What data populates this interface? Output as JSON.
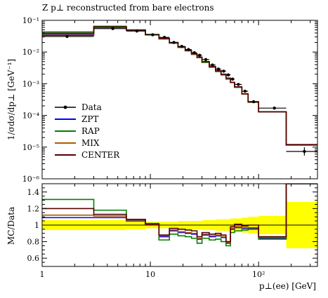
{
  "chart_data": [
    {
      "type": "line",
      "title": "Z p⊥ reconstructed from bare electrons",
      "ylabel": "1/σdσ/dp⊥ [GeV⁻¹]",
      "xscale": "log",
      "yscale": "log",
      "xlim": [
        1,
        350
      ],
      "ylim": [
        1e-06,
        0.1
      ],
      "x_ticks": [
        "1",
        "10",
        "10²"
      ],
      "y_ticks": [
        "10⁻⁶",
        "10⁻⁵",
        "10⁻⁴",
        "10⁻³",
        "10⁻²",
        "10⁻¹"
      ],
      "legend_position": "bottom-left",
      "bin_edges": [
        1,
        3,
        6,
        9,
        12,
        15,
        18,
        21,
        24,
        27,
        30,
        35,
        40,
        45,
        50,
        55,
        60,
        70,
        80,
        100,
        180,
        350
      ],
      "series": [
        {
          "name": "ZPT",
          "color": "#0000ff",
          "values": [
            0.034,
            0.06,
            0.049,
            0.035,
            0.026,
            0.019,
            0.014,
            0.011,
            0.0085,
            0.0067,
            0.0048,
            0.0034,
            0.0025,
            0.0019,
            0.0015,
            0.0011,
            0.00078,
            0.00047,
            0.00026,
            0.00013,
            1.15e-05
          ]
        },
        {
          "name": "RAP",
          "color": "#008000",
          "values": [
            0.043,
            0.065,
            0.05,
            0.036,
            0.026,
            0.019,
            0.014,
            0.011,
            0.0084,
            0.0066,
            0.0047,
            0.0033,
            0.0024,
            0.0019,
            0.0014,
            0.0011,
            0.00077,
            0.00047,
            0.00026,
            0.00013,
            1.15e-05
          ]
        },
        {
          "name": "MIX",
          "color": "#b05a00",
          "values": [
            0.037,
            0.061,
            0.049,
            0.035,
            0.026,
            0.019,
            0.014,
            0.011,
            0.0086,
            0.0067,
            0.0049,
            0.0034,
            0.0025,
            0.0019,
            0.0015,
            0.0011,
            0.00079,
            0.00047,
            0.00026,
            0.00013,
            1.15e-05
          ]
        },
        {
          "name": "CENTER",
          "color": "#550000",
          "values": [
            0.039,
            0.062,
            0.049,
            0.035,
            0.027,
            0.02,
            0.0145,
            0.0112,
            0.0088,
            0.0069,
            0.005,
            0.0035,
            0.0026,
            0.002,
            0.0015,
            0.0011,
            0.0008,
            0.00048,
            0.00027,
            0.00013,
            1.2e-05
          ]
        }
      ],
      "data_points": {
        "name": "Data",
        "color": "#000000",
        "x": [
          1.7,
          4.5,
          7.5,
          10.5,
          13.5,
          16.5,
          19.5,
          22.5,
          25.5,
          28.5,
          32.5,
          37.5,
          42.5,
          47.5,
          52.5,
          57.5,
          65,
          75,
          90,
          140,
          265
        ],
        "y": [
          0.031,
          0.055,
          0.046,
          0.035,
          0.029,
          0.02,
          0.015,
          0.012,
          0.0095,
          0.0079,
          0.0058,
          0.0039,
          0.0029,
          0.0025,
          0.0019,
          0.0014,
          0.00095,
          0.00058,
          0.00027,
          0.00017,
          7.3e-06
        ]
      }
    },
    {
      "type": "line",
      "title": "",
      "xlabel": "p⊥(ee) [GeV]",
      "ylabel": "MC/Data",
      "xscale": "log",
      "xlim": [
        1,
        350
      ],
      "ylim": [
        0.5,
        1.5
      ],
      "x_ticks": [
        "1",
        "10",
        "10²"
      ],
      "y_ticks": [
        "0.6",
        "0.8",
        "1",
        "1.2",
        "1.4"
      ],
      "band": {
        "name": "data uncertainty",
        "color": "#ffff00",
        "bin_edges": [
          1,
          3,
          6,
          9,
          12,
          15,
          18,
          21,
          24,
          27,
          30,
          35,
          40,
          45,
          50,
          55,
          60,
          70,
          80,
          100,
          180,
          350
        ],
        "lower": [
          0.94,
          0.94,
          0.95,
          0.96,
          0.96,
          0.96,
          0.95,
          0.95,
          0.95,
          0.95,
          0.94,
          0.94,
          0.93,
          0.93,
          0.93,
          0.92,
          0.92,
          0.91,
          0.9,
          0.89,
          0.72
        ],
        "upper": [
          1.06,
          1.06,
          1.05,
          1.04,
          1.04,
          1.04,
          1.05,
          1.05,
          1.05,
          1.05,
          1.06,
          1.06,
          1.07,
          1.07,
          1.07,
          1.08,
          1.08,
          1.09,
          1.1,
          1.11,
          1.28
        ]
      },
      "bin_edges": [
        1,
        3,
        6,
        9,
        12,
        15,
        18,
        21,
        24,
        27,
        30,
        35,
        40,
        45,
        50,
        55,
        60,
        70,
        80,
        100,
        180,
        350
      ],
      "series": [
        {
          "name": "ZPT",
          "color": "#0000ff",
          "values": [
            1.09,
            1.09,
            1.05,
            1.0,
            0.86,
            0.93,
            0.91,
            0.9,
            0.89,
            0.83,
            0.88,
            0.86,
            0.87,
            0.85,
            0.78,
            0.95,
            0.97,
            0.96,
            0.96,
            0.84,
            1.5
          ]
        },
        {
          "name": "RAP",
          "color": "#008000",
          "values": [
            1.31,
            1.18,
            1.06,
            1.02,
            0.82,
            0.89,
            0.87,
            0.86,
            0.84,
            0.78,
            0.84,
            0.82,
            0.83,
            0.8,
            0.75,
            0.91,
            0.93,
            0.94,
            0.95,
            0.83,
            1.5
          ]
        },
        {
          "name": "MIX",
          "color": "#b05a00",
          "values": [
            1.12,
            1.11,
            1.06,
            1.0,
            0.87,
            0.94,
            0.92,
            0.91,
            0.9,
            0.84,
            0.89,
            0.87,
            0.88,
            0.86,
            0.79,
            0.96,
            0.98,
            0.97,
            0.97,
            0.85,
            1.5
          ]
        },
        {
          "name": "CENTER",
          "color": "#550000",
          "values": [
            1.2,
            1.13,
            1.07,
            1.01,
            0.88,
            0.96,
            0.95,
            0.94,
            0.93,
            0.86,
            0.91,
            0.89,
            0.9,
            0.88,
            0.8,
            0.98,
            1.01,
            0.99,
            1.0,
            0.86,
            1.5
          ]
        }
      ]
    }
  ],
  "legend": {
    "entries": [
      {
        "name": "Data",
        "color": "#000000",
        "marker": "point"
      },
      {
        "name": "ZPT",
        "color": "#0000ff",
        "marker": "line"
      },
      {
        "name": "RAP",
        "color": "#008000",
        "marker": "line"
      },
      {
        "name": "MIX",
        "color": "#b05a00",
        "marker": "line"
      },
      {
        "name": "CENTER",
        "color": "#550000",
        "marker": "line"
      }
    ]
  }
}
